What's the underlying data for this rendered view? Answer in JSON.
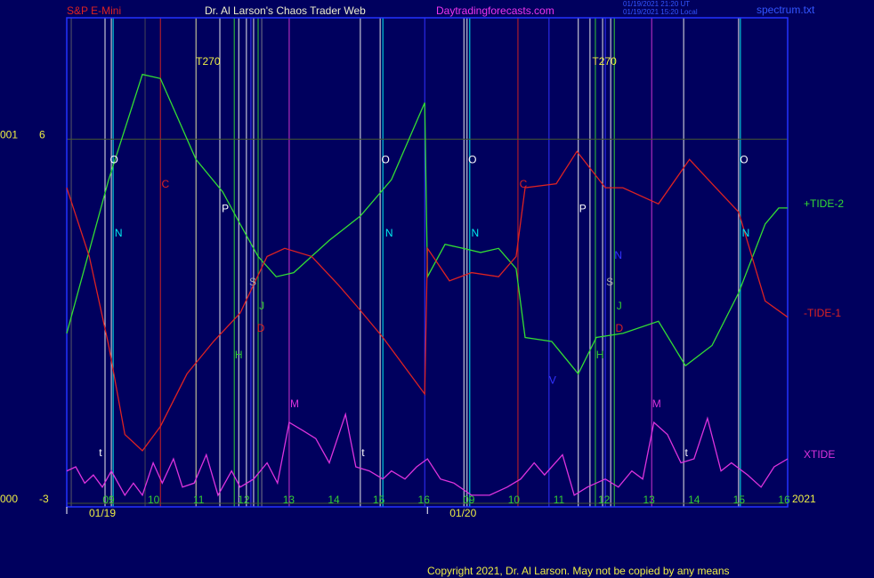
{
  "header": {
    "instrument": "S&P E-Mini",
    "site": "Dr. Al Larson's Chaos Trader Web",
    "url": "Daytradingforecasts.com",
    "timestamps": [
      "01/19/2021 21:20 UT",
      "01/19/2021 15:20 Local"
    ],
    "file": "spectrum.txt"
  },
  "footer": {
    "copyright": "Copyright 2021, Dr. Al Larson. May not be copied by any means",
    "year": "2021"
  },
  "chart_data": {
    "type": "line",
    "xlim": [
      -0.93,
      15.08
    ],
    "ylim": [
      -3,
      9
    ],
    "yticks": [
      6,
      -3
    ],
    "y_scale_labels": [
      "001",
      "000"
    ],
    "grid": true,
    "xticks": [
      {
        "value": 0,
        "label": "09"
      },
      {
        "value": 1,
        "label": "10"
      },
      {
        "value": 2,
        "label": "11"
      },
      {
        "value": 3,
        "label": "12"
      },
      {
        "value": 4,
        "label": "13"
      },
      {
        "value": 5,
        "label": "14"
      },
      {
        "value": 6,
        "label": "15"
      },
      {
        "value": 7,
        "label": "16"
      },
      {
        "value": 8,
        "label": "09"
      },
      {
        "value": 9,
        "label": "10"
      },
      {
        "value": 10,
        "label": "11"
      },
      {
        "value": 11,
        "label": "12"
      },
      {
        "value": 12,
        "label": "13"
      },
      {
        "value": 13,
        "label": "14"
      },
      {
        "value": 14,
        "label": "15"
      },
      {
        "value": 15,
        "label": "16"
      }
    ],
    "dates": [
      {
        "value": -0.93,
        "label": "01/19"
      },
      {
        "value": 7.08,
        "label": "01/20"
      }
    ],
    "series": [
      {
        "name": "+TIDE-2",
        "color": "#33dd33",
        "x": [
          -0.93,
          0,
          0.75,
          1.15,
          1.94,
          2.53,
          2.92,
          3.32,
          3.72,
          4.11,
          4.9,
          5.59,
          6.28,
          7.02,
          7.08,
          7.47,
          7.87,
          8.26,
          8.66,
          9.05,
          9.25,
          9.84,
          10.43,
          10.83,
          11.42,
          12.21,
          12.81,
          13.4,
          13.99,
          14.58,
          14.88,
          15.08
        ],
        "values": [
          1.2,
          5.0,
          7.6,
          7.5,
          5.5,
          4.7,
          3.9,
          3.1,
          2.6,
          2.7,
          3.5,
          4.1,
          5.0,
          6.9,
          2.6,
          3.4,
          3.3,
          3.2,
          3.3,
          2.8,
          1.1,
          1.0,
          0.2,
          1.1,
          1.2,
          1.5,
          0.4,
          0.9,
          2.2,
          3.9,
          4.3,
          4.3
        ]
      },
      {
        "name": "-TIDE-1",
        "color": "#dd2222",
        "x": [
          -0.93,
          -0.43,
          0,
          0.36,
          0.75,
          1.15,
          1.74,
          2.33,
          2.92,
          3.52,
          3.91,
          4.51,
          5.1,
          5.49,
          6.09,
          7.02,
          7.08,
          7.57,
          8.06,
          8.66,
          9.05,
          9.25,
          9.94,
          10.4,
          11.03,
          11.42,
          12.21,
          12.9,
          13.4,
          13.99,
          14.58,
          15.08
        ],
        "values": [
          4.8,
          3.1,
          0.9,
          -1.3,
          -1.7,
          -1.1,
          0.2,
          1.0,
          1.7,
          3.1,
          3.3,
          3.1,
          2.4,
          1.9,
          1.1,
          -0.3,
          3.3,
          2.5,
          2.7,
          2.6,
          3.1,
          4.8,
          4.9,
          5.7,
          4.8,
          4.8,
          4.4,
          5.5,
          4.9,
          4.2,
          2.0,
          1.6
        ]
      },
      {
        "name": "XTIDE",
        "color": "#dd33dd",
        "x": [
          -0.93,
          -0.73,
          -0.53,
          -0.34,
          -0.14,
          0.06,
          0.36,
          0.55,
          0.75,
          0.99,
          1.19,
          1.44,
          1.64,
          1.9,
          2.17,
          2.43,
          2.73,
          2.92,
          3.22,
          3.52,
          3.75,
          4.01,
          4.31,
          4.6,
          4.9,
          5.26,
          5.49,
          5.79,
          6.09,
          6.28,
          6.58,
          6.84,
          7.08,
          7.37,
          7.67,
          8.06,
          8.46,
          8.85,
          9.15,
          9.45,
          9.68,
          10.08,
          10.34,
          10.63,
          11.03,
          11.32,
          11.62,
          11.86,
          12.11,
          12.41,
          12.71,
          13.0,
          13.3,
          13.6,
          13.83,
          14.19,
          14.49,
          14.78,
          15.08
        ],
        "values": [
          -2.2,
          -2.1,
          -2.5,
          -2.3,
          -2.6,
          -2.2,
          -2.8,
          -2.5,
          -2.8,
          -2.0,
          -2.5,
          -1.9,
          -2.6,
          -2.5,
          -1.8,
          -2.8,
          -2.2,
          -2.6,
          -2.4,
          -2.0,
          -2.5,
          -1.0,
          -1.2,
          -1.4,
          -2.0,
          -0.8,
          -2.1,
          -2.2,
          -2.4,
          -2.2,
          -2.4,
          -2.1,
          -1.9,
          -2.4,
          -2.5,
          -2.8,
          -2.8,
          -2.6,
          -2.4,
          -2.0,
          -2.3,
          -1.8,
          -2.8,
          -2.6,
          -2.4,
          -2.6,
          -2.2,
          -2.4,
          -1.0,
          -1.3,
          -2.0,
          -1.9,
          -0.9,
          -2.2,
          -2.0,
          -2.3,
          -2.6,
          -2.1,
          -1.9
        ]
      }
    ],
    "vlines": [
      {
        "x": -0.83,
        "color": "#555566"
      },
      {
        "x": -0.08,
        "color": "#e8e8e8"
      },
      {
        "x": 0.06,
        "color": "#e8e8e8"
      },
      {
        "x": 0.1,
        "color": "#00eeee"
      },
      {
        "x": 0.81,
        "color": "#444455"
      },
      {
        "x": 1.15,
        "color": "#cc2222"
      },
      {
        "x": 1.94,
        "color": "#e0e0a0"
      },
      {
        "x": 2.47,
        "color": "#e8e8e8"
      },
      {
        "x": 2.79,
        "color": "#33cc33"
      },
      {
        "x": 2.89,
        "color": "#e8e8e8"
      },
      {
        "x": 3.06,
        "color": "#e8e8e8"
      },
      {
        "x": 3.16,
        "color": "#3333ff"
      },
      {
        "x": 3.22,
        "color": "#e8e8e8"
      },
      {
        "x": 3.32,
        "color": "#33cc33"
      },
      {
        "x": 3.4,
        "color": "#777788"
      },
      {
        "x": 4.01,
        "color": "#cc33cc"
      },
      {
        "x": 5.59,
        "color": "#e8e8e8"
      },
      {
        "x": 6.03,
        "color": "#e8e8e8"
      },
      {
        "x": 6.09,
        "color": "#00eeee"
      },
      {
        "x": 7.02,
        "color": "#3333ff"
      },
      {
        "x": 7.89,
        "color": "#e8e8e8"
      },
      {
        "x": 7.96,
        "color": "#e8e8e8"
      },
      {
        "x": 8.02,
        "color": "#00eeee"
      },
      {
        "x": 9.09,
        "color": "#cc2222"
      },
      {
        "x": 9.78,
        "color": "#3333ff"
      },
      {
        "x": 10.43,
        "color": "#e8e8e8"
      },
      {
        "x": 10.69,
        "color": "#e8e8e8"
      },
      {
        "x": 10.81,
        "color": "#33cc33"
      },
      {
        "x": 10.97,
        "color": "#e8e8e8"
      },
      {
        "x": 11.03,
        "color": "#3333ff"
      },
      {
        "x": 11.15,
        "color": "#e8e8e8"
      },
      {
        "x": 11.23,
        "color": "#33cc33"
      },
      {
        "x": 12.06,
        "color": "#cc33cc"
      },
      {
        "x": 12.77,
        "color": "#e8e8e8"
      },
      {
        "x": 13.99,
        "color": "#e8e8e8"
      },
      {
        "x": 14.03,
        "color": "#00eeee"
      }
    ],
    "annotations": [
      {
        "text": "O",
        "x": 0.12,
        "y": 5.48,
        "color": "#ffffff"
      },
      {
        "text": "N",
        "x": 0.22,
        "y": 3.66,
        "color": "#00eeee"
      },
      {
        "text": "C",
        "x": 1.26,
        "y": 4.87,
        "color": "#dd2222"
      },
      {
        "text": "T270",
        "x": 2.21,
        "y": 7.9,
        "color": "#eeee44"
      },
      {
        "text": "P",
        "x": 2.59,
        "y": 4.27,
        "color": "#ffffff"
      },
      {
        "text": "S",
        "x": 3.2,
        "y": 2.45,
        "color": "#aaaaaa"
      },
      {
        "text": "J",
        "x": 3.4,
        "y": 1.86,
        "color": "#33cc33"
      },
      {
        "text": "H",
        "x": 2.89,
        "y": 0.65,
        "color": "#33cc33"
      },
      {
        "text": "D",
        "x": 3.38,
        "y": 1.31,
        "color": "#dd2222"
      },
      {
        "text": "M",
        "x": 4.13,
        "y": -0.56,
        "color": "#dd33dd"
      },
      {
        "text": "t",
        "x": -0.18,
        "y": -1.77,
        "color": "#ffffff"
      },
      {
        "text": "O",
        "x": 6.15,
        "y": 5.48,
        "color": "#ffffff"
      },
      {
        "text": "N",
        "x": 6.23,
        "y": 3.66,
        "color": "#00eeee"
      },
      {
        "text": "t",
        "x": 5.65,
        "y": -1.77,
        "color": "#ffffff"
      },
      {
        "text": "O",
        "x": 8.08,
        "y": 5.48,
        "color": "#ffffff"
      },
      {
        "text": "N",
        "x": 8.14,
        "y": 3.66,
        "color": "#00eeee"
      },
      {
        "text": "C",
        "x": 9.21,
        "y": 4.87,
        "color": "#dd2222"
      },
      {
        "text": "T270",
        "x": 11.01,
        "y": 7.9,
        "color": "#eeee44"
      },
      {
        "text": "P",
        "x": 10.53,
        "y": 4.27,
        "color": "#ffffff"
      },
      {
        "text": "S",
        "x": 11.13,
        "y": 2.45,
        "color": "#aaaaaa"
      },
      {
        "text": "N",
        "x": 11.32,
        "y": 3.11,
        "color": "#3333ff"
      },
      {
        "text": "J",
        "x": 11.34,
        "y": 1.86,
        "color": "#33cc33"
      },
      {
        "text": "H",
        "x": 10.91,
        "y": 0.65,
        "color": "#33cc33"
      },
      {
        "text": "D",
        "x": 11.34,
        "y": 1.31,
        "color": "#dd2222"
      },
      {
        "text": "V",
        "x": 9.86,
        "y": 0.03,
        "color": "#3333ff"
      },
      {
        "text": "M",
        "x": 12.17,
        "y": -0.56,
        "color": "#dd33dd"
      },
      {
        "text": "t",
        "x": 12.83,
        "y": -1.77,
        "color": "#ffffff"
      },
      {
        "text": "O",
        "x": 14.11,
        "y": 5.48,
        "color": "#ffffff"
      },
      {
        "text": "N",
        "x": 14.15,
        "y": 3.66,
        "color": "#00eeee"
      }
    ]
  }
}
